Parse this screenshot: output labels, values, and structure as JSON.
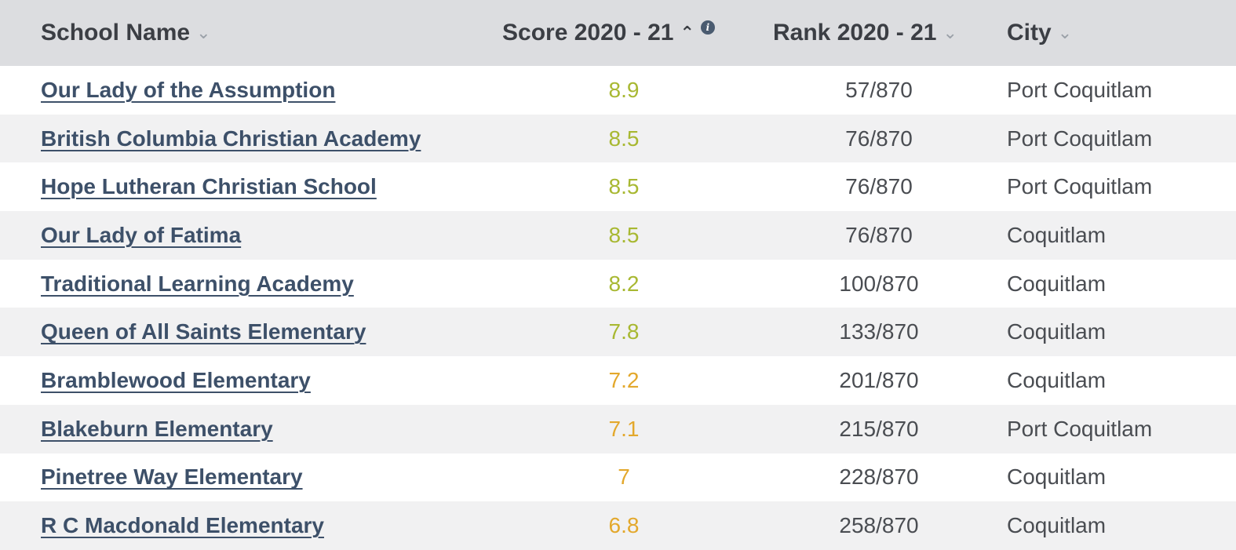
{
  "table": {
    "headers": {
      "name": "School Name",
      "score": "Score 2020 - 21",
      "rank": "Rank 2020 - 21",
      "city": "City"
    },
    "colors": {
      "score_green": "#a3b530",
      "score_yellow_green": "#b9b52c",
      "score_orange": "#e0a92a"
    },
    "rows": [
      {
        "name": "Our Lady of the Assumption",
        "score": "8.9",
        "score_color": "#a8b832",
        "rank": "57/870",
        "city": "Port Coquitlam"
      },
      {
        "name": "British Columbia Christian Academy",
        "score": "8.5",
        "score_color": "#a8b832",
        "rank": "76/870",
        "city": "Port Coquitlam"
      },
      {
        "name": "Hope Lutheran Christian School",
        "score": "8.5",
        "score_color": "#a8b832",
        "rank": "76/870",
        "city": "Port Coquitlam"
      },
      {
        "name": "Our Lady of Fatima",
        "score": "8.5",
        "score_color": "#a8b832",
        "rank": "76/870",
        "city": "Coquitlam"
      },
      {
        "name": "Traditional Learning Academy",
        "score": "8.2",
        "score_color": "#a8b832",
        "rank": "100/870",
        "city": "Coquitlam"
      },
      {
        "name": "Queen of All Saints Elementary",
        "score": "7.8",
        "score_color": "#a8b832",
        "rank": "133/870",
        "city": "Coquitlam"
      },
      {
        "name": "Bramblewood Elementary",
        "score": "7.2",
        "score_color": "#e3a82c",
        "rank": "201/870",
        "city": "Coquitlam"
      },
      {
        "name": "Blakeburn Elementary",
        "score": "7.1",
        "score_color": "#e3a82c",
        "rank": "215/870",
        "city": "Port Coquitlam"
      },
      {
        "name": "Pinetree Way Elementary",
        "score": "7",
        "score_color": "#e3a82c",
        "rank": "228/870",
        "city": "Coquitlam"
      },
      {
        "name": "R C Macdonald Elementary",
        "score": "6.8",
        "score_color": "#e3a82c",
        "rank": "258/870",
        "city": "Coquitlam"
      }
    ]
  }
}
